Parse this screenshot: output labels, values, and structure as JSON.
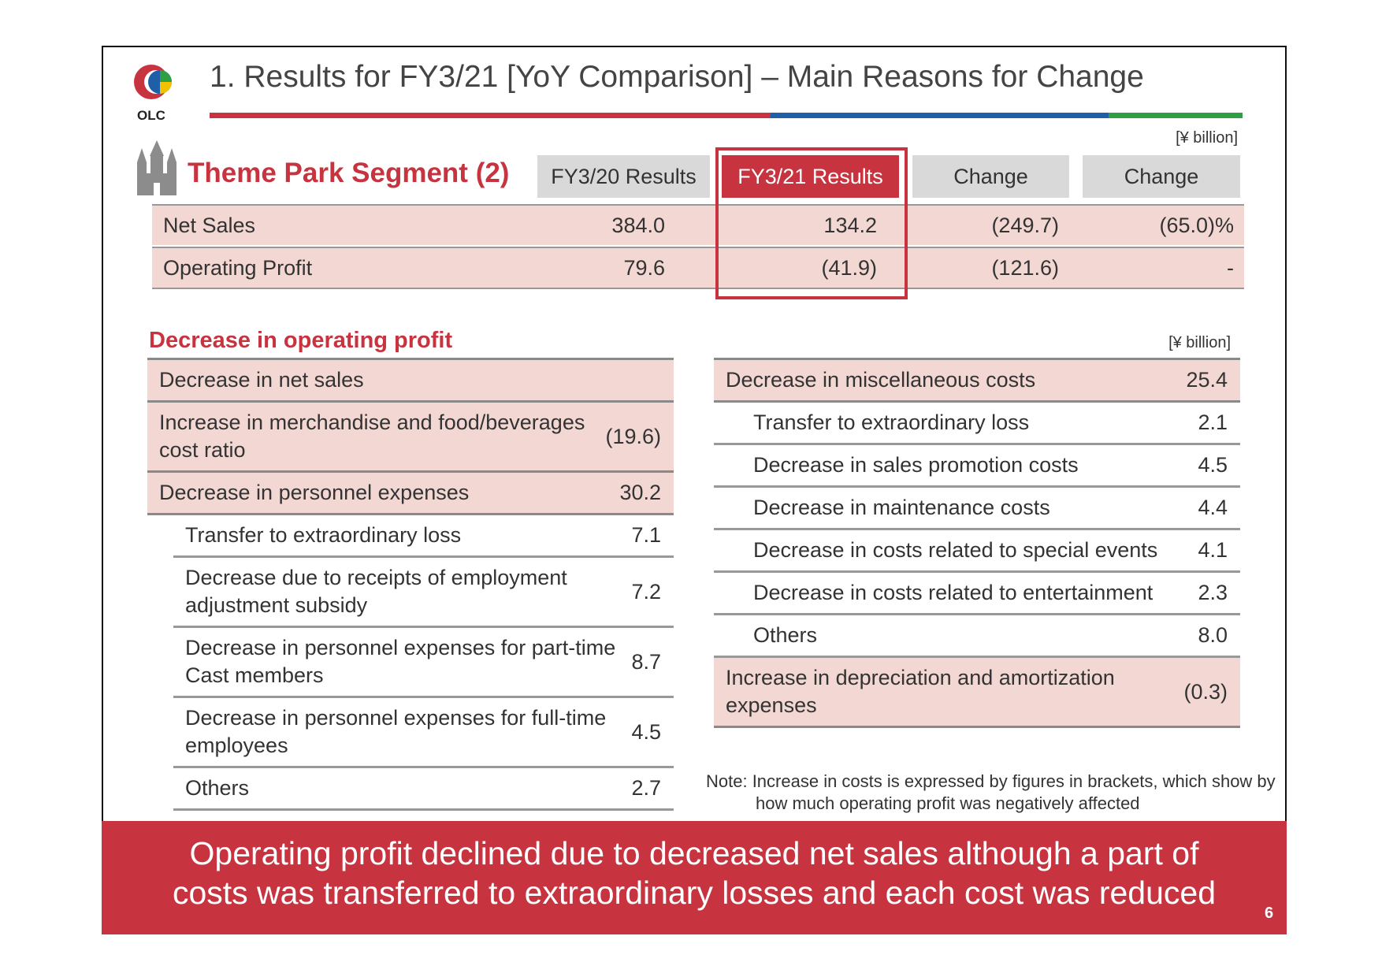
{
  "header": {
    "logo_text": "OLC",
    "title": "1. Results for FY3/21 [YoY Comparison] – Main Reasons for Change"
  },
  "segment": {
    "title": "Theme Park Segment (2)",
    "unit": "[¥ billion]"
  },
  "summary": {
    "columns": [
      "FY3/20 Results",
      "FY3/21 Results",
      "Change",
      "Change"
    ],
    "rows": [
      [
        "Net Sales",
        "384.0",
        "134.2",
        "(249.7)",
        "(65.0)%"
      ],
      [
        "Operating Profit",
        "79.6",
        "(41.9)",
        "(121.6)",
        "-"
      ]
    ]
  },
  "left": {
    "title": "Decrease in operating profit",
    "groups": [
      {
        "label": "Decrease in net sales"
      },
      {
        "label": "Increase in merchandise and food/beverages cost ratio",
        "value": "(19.6)"
      },
      {
        "label": "Decrease in personnel expenses",
        "value": "30.2",
        "items": [
          {
            "label": "Transfer to extraordinary loss",
            "value": "7.1"
          },
          {
            "label": "Decrease due to receipts of employment adjustment subsidy",
            "value": "7.2"
          },
          {
            "label": "Decrease in personnel expenses for part-time Cast members",
            "value": "8.7"
          },
          {
            "label": "Decrease in personnel expenses for full-time employees",
            "value": "4.5"
          },
          {
            "label": "Others",
            "value": "2.7"
          }
        ]
      }
    ]
  },
  "right": {
    "unit": "[¥ billion]",
    "groups": [
      {
        "label": "Decrease in miscellaneous costs",
        "value": "25.4",
        "items": [
          {
            "label": "Transfer to extraordinary loss",
            "value": "2.1"
          },
          {
            "label": "Decrease in sales promotion costs",
            "value": "4.5"
          },
          {
            "label": "Decrease in maintenance costs",
            "value": "4.4"
          },
          {
            "label": "Decrease in costs related to special events",
            "value": "4.1"
          },
          {
            "label": "Decrease in costs related to entertainment",
            "value": "2.3"
          },
          {
            "label": "Others",
            "value": "8.0"
          }
        ]
      },
      {
        "label": "Increase in depreciation and amortization expenses",
        "value": "(0.3)"
      }
    ]
  },
  "note": "Note: Increase in costs is expressed by figures in brackets, which show by how much operating profit was negatively affected",
  "footer": {
    "message": "Operating profit declined due to decreased net sales although a part of costs was transferred to extraordinary losses and each cost was reduced",
    "page": "6"
  }
}
